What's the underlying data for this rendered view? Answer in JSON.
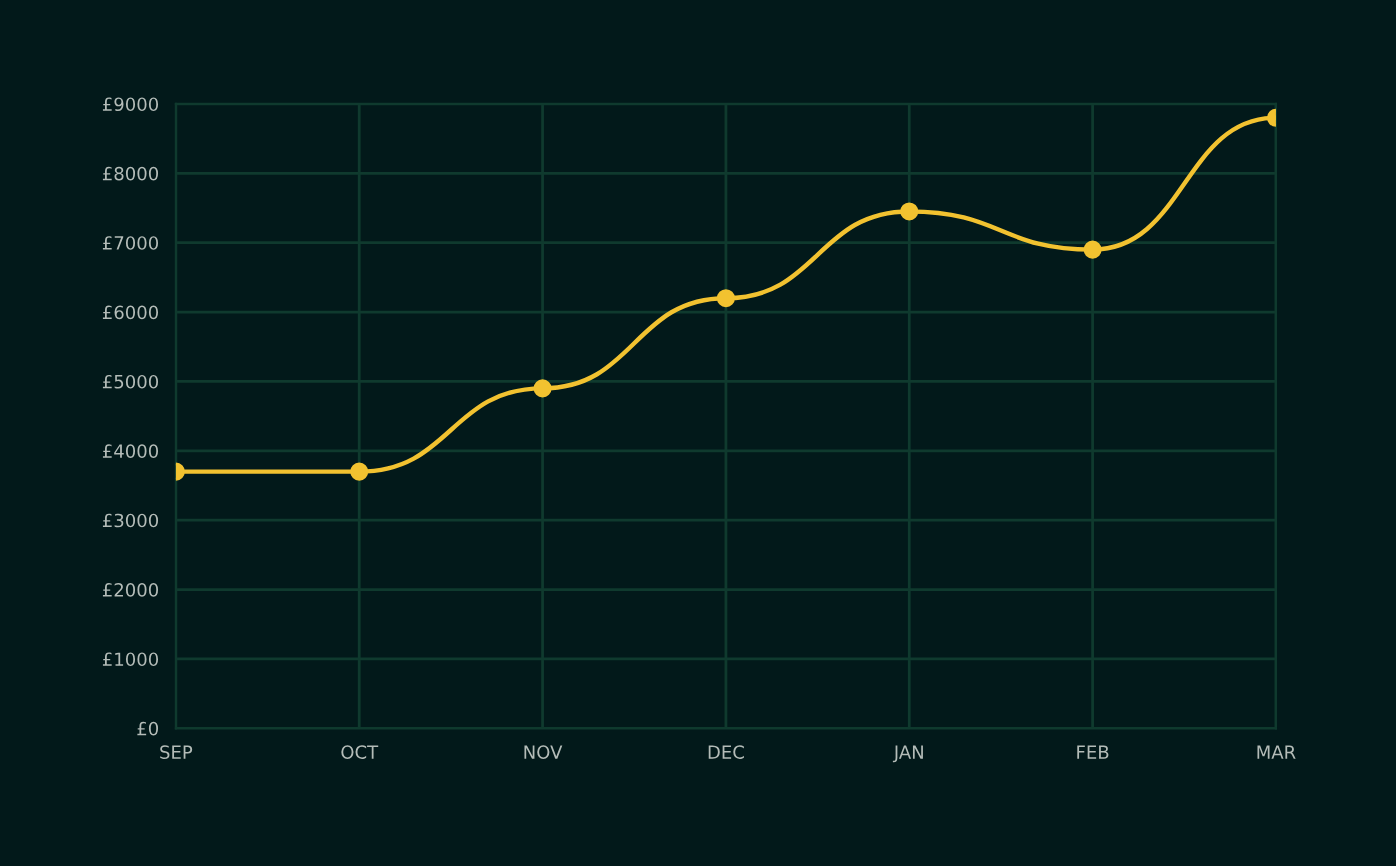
{
  "chart_data": {
    "type": "line",
    "categories": [
      "SEP",
      "OCT",
      "NOV",
      "DEC",
      "JAN",
      "FEB",
      "MAR"
    ],
    "series": [
      {
        "color": "#f2c230",
        "values": [
          3700,
          3700,
          4900,
          6200,
          7450,
          6900,
          8800
        ]
      }
    ],
    "ylim": [
      0,
      9000
    ],
    "yticks": [
      {
        "value": 0,
        "label": "£0"
      },
      {
        "value": 1000,
        "label": "£1000"
      },
      {
        "value": 2000,
        "label": "£2000"
      },
      {
        "value": 3000,
        "label": "£3000"
      },
      {
        "value": 4000,
        "label": "£4000"
      },
      {
        "value": 5000,
        "label": "£5000"
      },
      {
        "value": 6000,
        "label": "£6000"
      },
      {
        "value": 7000,
        "label": "£7000"
      },
      {
        "value": 8000,
        "label": "£8000"
      },
      {
        "value": 9000,
        "label": "£9000"
      }
    ],
    "grid": true,
    "marker": "circle",
    "line_style": "solid",
    "legend": false
  }
}
